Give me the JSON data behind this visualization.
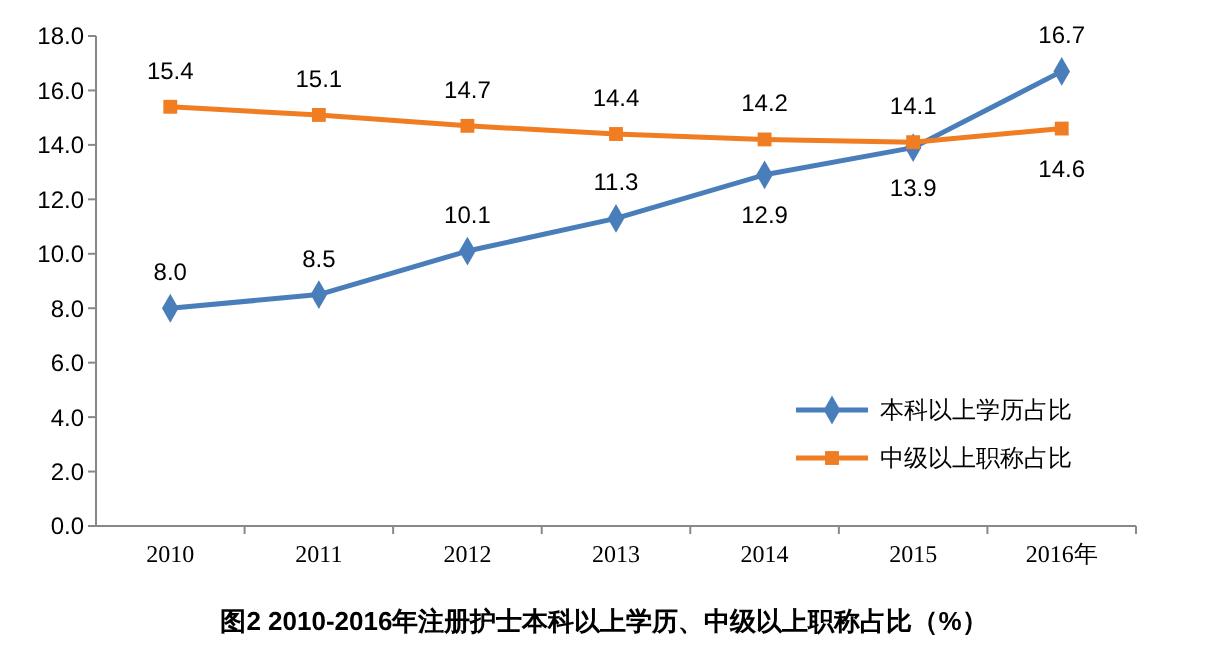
{
  "chart_data": {
    "type": "line",
    "title": "图2  2010-2016年注册护士本科以上学历、中级以上职称占比（%）",
    "categories": [
      "2010",
      "2011",
      "2012",
      "2013",
      "2014",
      "2015",
      "2016年"
    ],
    "series": [
      {
        "name": "本科以上学历占比",
        "color": "#4a7ebb",
        "marker": "diamond",
        "values": [
          8.0,
          8.5,
          10.1,
          11.3,
          12.9,
          13.9,
          16.7
        ],
        "value_labels": [
          "8.0",
          "8.5",
          "10.1",
          "11.3",
          "12.9",
          "13.9",
          "16.7"
        ]
      },
      {
        "name": "中级以上职称占比",
        "color": "#f07d22",
        "marker": "square",
        "values": [
          15.4,
          15.1,
          14.7,
          14.4,
          14.2,
          14.1,
          14.6
        ],
        "value_labels": [
          "15.4",
          "15.1",
          "14.7",
          "14.4",
          "14.2",
          "14.1",
          "14.6"
        ]
      }
    ],
    "ylim": [
      0,
      18
    ],
    "yticks": [
      {
        "value": 0,
        "label": "0.0"
      },
      {
        "value": 2,
        "label": "2.0"
      },
      {
        "value": 4,
        "label": "4.0"
      },
      {
        "value": 6,
        "label": "6.0"
      },
      {
        "value": 8,
        "label": "8.0"
      },
      {
        "value": 10,
        "label": "10.0"
      },
      {
        "value": 12,
        "label": "12.0"
      },
      {
        "value": 14,
        "label": "14.0"
      },
      {
        "value": 16,
        "label": "16.0"
      },
      {
        "value": 18,
        "label": "18.0"
      }
    ],
    "grid": false,
    "legend": "right",
    "line_style": "solid"
  }
}
